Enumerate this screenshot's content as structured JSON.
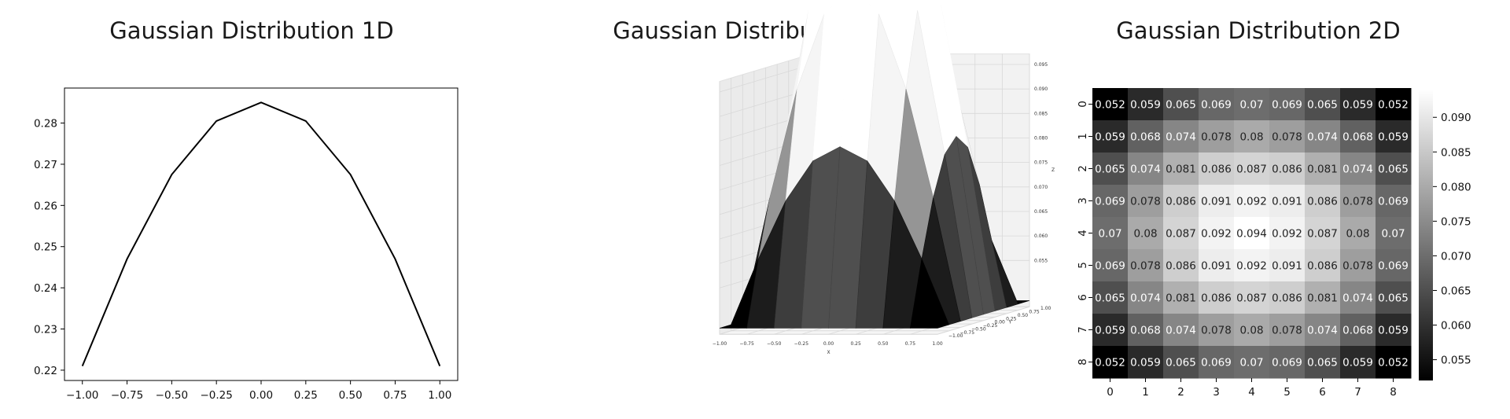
{
  "chart_data": [
    {
      "type": "line",
      "title": "Gaussian Distribution 1D",
      "xlabel": "",
      "ylabel": "",
      "x": [
        -1.0,
        -0.75,
        -0.5,
        -0.25,
        0.0,
        0.25,
        0.5,
        0.75,
        1.0
      ],
      "y": [
        0.221,
        0.247,
        0.2675,
        0.2805,
        0.285,
        0.2805,
        0.2675,
        0.247,
        0.221
      ],
      "xlim": [
        -1.1,
        1.1
      ],
      "ylim": [
        0.2175,
        0.2885
      ],
      "x_ticks": [
        -1.0,
        -0.75,
        -0.5,
        -0.25,
        0.0,
        0.25,
        0.5,
        0.75,
        1.0
      ],
      "x_tick_labels": [
        "−1.00",
        "−0.75",
        "−0.50",
        "−0.25",
        "0.00",
        "0.25",
        "0.50",
        "0.75",
        "1.00"
      ],
      "y_ticks": [
        0.22,
        0.23,
        0.24,
        0.25,
        0.26,
        0.27,
        0.28
      ],
      "y_tick_labels": [
        "0.22",
        "0.23",
        "0.24",
        "0.25",
        "0.26",
        "0.27",
        "0.28"
      ],
      "line_color": "#000000",
      "grid": false
    },
    {
      "type": "surface",
      "title": "Gaussian Distribution 3D",
      "xlabel": "X",
      "ylabel": "Y",
      "zlabel": "Z",
      "x": [
        -1.0,
        -0.75,
        -0.5,
        -0.25,
        0.0,
        0.25,
        0.5,
        0.75,
        1.0
      ],
      "y": [
        -1.0,
        -0.75,
        -0.5,
        -0.25,
        0.0,
        0.25,
        0.5,
        0.75,
        1.0
      ],
      "zlim": [
        0.052,
        0.095
      ],
      "x_tick_labels": [
        "−1.00",
        "−0.75",
        "−0.50",
        "−0.25",
        "0.00",
        "0.25",
        "0.50",
        "0.75",
        "1.00"
      ],
      "y_tick_labels": [
        "−1.00",
        "−0.75",
        "−0.50",
        "−0.25",
        "0.00",
        "0.25",
        "0.50",
        "0.75",
        "1.00"
      ],
      "z_ticks": [
        0.055,
        0.06,
        0.065,
        0.07,
        0.075,
        0.08,
        0.085,
        0.09,
        0.095
      ],
      "z_tick_labels": [
        "0.055",
        "0.060",
        "0.065",
        "0.070",
        "0.075",
        "0.080",
        "0.085",
        "0.090",
        "0.095"
      ],
      "colormap": "gray",
      "grid": true
    },
    {
      "type": "heatmap",
      "title": "Gaussian Distribution 2D",
      "x_tick_labels": [
        "0",
        "1",
        "2",
        "3",
        "4",
        "5",
        "6",
        "7",
        "8"
      ],
      "y_tick_labels": [
        "0",
        "1",
        "2",
        "3",
        "4",
        "5",
        "6",
        "7",
        "8"
      ],
      "values": [
        [
          0.052,
          0.059,
          0.065,
          0.069,
          0.07,
          0.069,
          0.065,
          0.059,
          0.052
        ],
        [
          0.059,
          0.068,
          0.074,
          0.078,
          0.08,
          0.078,
          0.074,
          0.068,
          0.059
        ],
        [
          0.065,
          0.074,
          0.081,
          0.086,
          0.087,
          0.086,
          0.081,
          0.074,
          0.065
        ],
        [
          0.069,
          0.078,
          0.086,
          0.091,
          0.092,
          0.091,
          0.086,
          0.078,
          0.069
        ],
        [
          0.07,
          0.08,
          0.087,
          0.092,
          0.094,
          0.092,
          0.087,
          0.08,
          0.07
        ],
        [
          0.069,
          0.078,
          0.086,
          0.091,
          0.092,
          0.091,
          0.086,
          0.078,
          0.069
        ],
        [
          0.065,
          0.074,
          0.081,
          0.086,
          0.087,
          0.086,
          0.081,
          0.074,
          0.065
        ],
        [
          0.059,
          0.068,
          0.074,
          0.078,
          0.08,
          0.078,
          0.074,
          0.068,
          0.059
        ],
        [
          0.052,
          0.059,
          0.065,
          0.069,
          0.07,
          0.069,
          0.065,
          0.059,
          0.052
        ]
      ],
      "vmin": 0.052,
      "vmax": 0.094,
      "colorbar_ticks": [
        0.055,
        0.06,
        0.065,
        0.07,
        0.075,
        0.08,
        0.085,
        0.09
      ],
      "colorbar_tick_labels": [
        "0.055",
        "0.060",
        "0.065",
        "0.070",
        "0.075",
        "0.080",
        "0.085",
        "0.090"
      ],
      "colormap": "gray",
      "annotated": true
    }
  ]
}
